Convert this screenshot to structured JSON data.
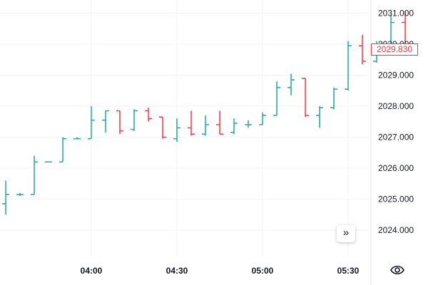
{
  "colors": {
    "up": "#26a69a",
    "down": "#f23645",
    "grid": "#f0f3fa",
    "text": "#131722"
  },
  "controls": {
    "scroll_icon": "double-chevron-right-icon",
    "scroll_glyph": "»",
    "eye_icon": "eye-icon"
  },
  "chart_data": {
    "type": "ohlc",
    "title": "",
    "xlabel": "",
    "ylabel": "",
    "ylim": [
      2023.2,
      2031.2
    ],
    "grid": true,
    "x_ticks": [
      "04:00",
      "04:30",
      "05:00",
      "05:30"
    ],
    "y_ticks": [
      "2024.000",
      "2025.000",
      "2026.000",
      "2027.000",
      "2028.000",
      "2029.000",
      "2030.000",
      "2031.000"
    ],
    "last_price_label": "2029.830",
    "bars": [
      {
        "t": "03:30",
        "o": 2024.85,
        "h": 2025.6,
        "l": 2024.5,
        "c": 2025.15
      },
      {
        "t": "03:35",
        "o": 2025.15,
        "h": 2025.2,
        "l": 2025.1,
        "c": 2025.15
      },
      {
        "t": "03:40",
        "o": 2025.15,
        "h": 2026.4,
        "l": 2025.15,
        "c": 2026.2
      },
      {
        "t": "03:45",
        "o": 2026.2,
        "h": 2026.2,
        "l": 2026.2,
        "c": 2026.2
      },
      {
        "t": "03:50",
        "o": 2026.2,
        "h": 2027.0,
        "l": 2026.2,
        "c": 2026.95
      },
      {
        "t": "03:55",
        "o": 2026.95,
        "h": 2027.0,
        "l": 2026.95,
        "c": 2026.95
      },
      {
        "t": "04:00",
        "o": 2026.95,
        "h": 2028.0,
        "l": 2026.95,
        "c": 2027.55
      },
      {
        "t": "04:05",
        "o": 2027.55,
        "h": 2027.85,
        "l": 2027.15,
        "c": 2027.85
      },
      {
        "t": "04:10",
        "o": 2027.85,
        "h": 2027.85,
        "l": 2027.1,
        "c": 2027.2
      },
      {
        "t": "04:15",
        "o": 2027.25,
        "h": 2027.9,
        "l": 2027.2,
        "c": 2027.85
      },
      {
        "t": "04:20",
        "o": 2027.85,
        "h": 2027.95,
        "l": 2027.5,
        "c": 2027.6
      },
      {
        "t": "04:25",
        "o": 2027.65,
        "h": 2027.65,
        "l": 2026.95,
        "c": 2027.0
      },
      {
        "t": "04:30",
        "o": 2026.95,
        "h": 2027.6,
        "l": 2026.85,
        "c": 2027.3
      },
      {
        "t": "04:35",
        "o": 2027.3,
        "h": 2027.85,
        "l": 2027.05,
        "c": 2027.1
      },
      {
        "t": "04:40",
        "o": 2027.1,
        "h": 2027.7,
        "l": 2027.05,
        "c": 2027.4
      },
      {
        "t": "04:45",
        "o": 2027.4,
        "h": 2027.85,
        "l": 2027.1,
        "c": 2027.1
      },
      {
        "t": "04:50",
        "o": 2027.15,
        "h": 2027.6,
        "l": 2027.1,
        "c": 2027.45
      },
      {
        "t": "04:55",
        "o": 2027.4,
        "h": 2027.55,
        "l": 2027.3,
        "c": 2027.4
      },
      {
        "t": "05:00",
        "o": 2027.4,
        "h": 2027.8,
        "l": 2027.4,
        "c": 2027.7
      },
      {
        "t": "05:05",
        "o": 2027.7,
        "h": 2028.8,
        "l": 2027.7,
        "c": 2028.6
      },
      {
        "t": "05:10",
        "o": 2028.6,
        "h": 2029.05,
        "l": 2028.35,
        "c": 2028.85
      },
      {
        "t": "05:15",
        "o": 2028.9,
        "h": 2028.9,
        "l": 2027.65,
        "c": 2027.7
      },
      {
        "t": "05:20",
        "o": 2027.7,
        "h": 2028.0,
        "l": 2027.3,
        "c": 2027.95
      },
      {
        "t": "05:25",
        "o": 2027.95,
        "h": 2028.6,
        "l": 2027.9,
        "c": 2028.55
      },
      {
        "t": "05:30",
        "o": 2028.55,
        "h": 2030.1,
        "l": 2028.5,
        "c": 2029.95
      },
      {
        "t": "05:35",
        "o": 2029.95,
        "h": 2030.3,
        "l": 2029.35,
        "c": 2029.45
      },
      {
        "t": "05:40",
        "o": 2029.45,
        "h": 2030.1,
        "l": 2029.4,
        "c": 2029.85
      },
      {
        "t": "05:45",
        "o": 2029.85,
        "h": 2030.95,
        "l": 2029.75,
        "c": 2030.7
      },
      {
        "t": "05:50",
        "o": 2030.7,
        "h": 2031.05,
        "l": 2029.75,
        "c": 2029.83
      }
    ]
  }
}
